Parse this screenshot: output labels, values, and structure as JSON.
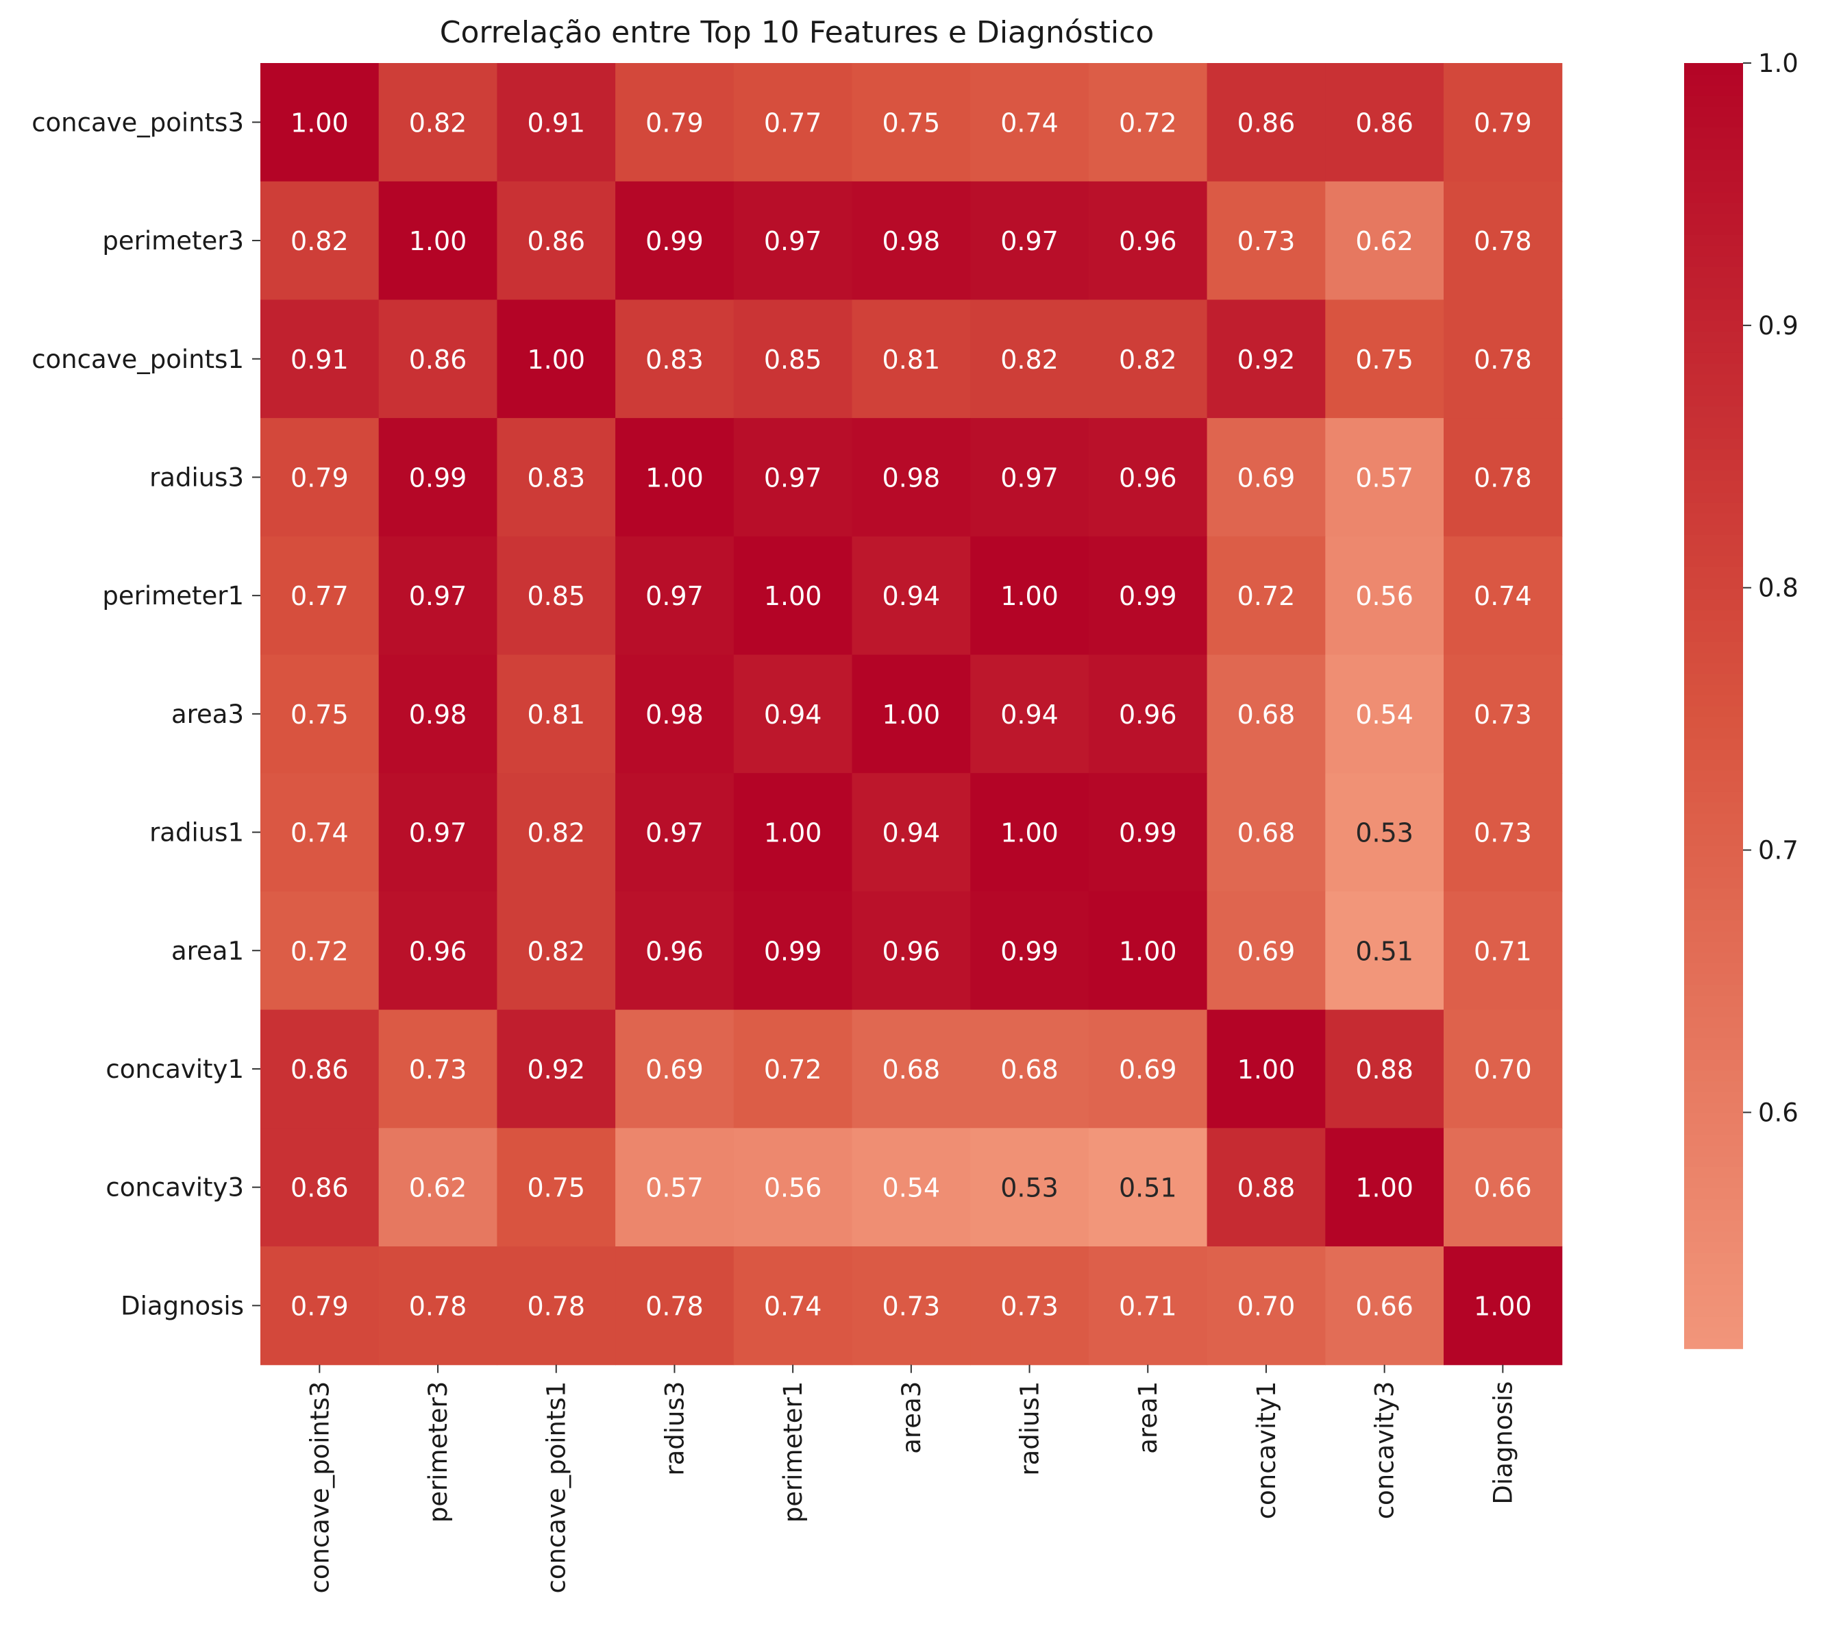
{
  "chart_data": {
    "type": "heatmap",
    "title": "Correlação entre Top 10 Features e Diagnóstico",
    "xlabel": "",
    "ylabel": "",
    "labels": [
      "concave_points3",
      "perimeter3",
      "concave_points1",
      "radius3",
      "perimeter1",
      "area3",
      "radius1",
      "area1",
      "concavity1",
      "concavity3",
      "Diagnosis"
    ],
    "values": [
      [
        1.0,
        0.82,
        0.91,
        0.79,
        0.77,
        0.75,
        0.74,
        0.72,
        0.86,
        0.86,
        0.79
      ],
      [
        0.82,
        1.0,
        0.86,
        0.99,
        0.97,
        0.98,
        0.97,
        0.96,
        0.73,
        0.62,
        0.78
      ],
      [
        0.91,
        0.86,
        1.0,
        0.83,
        0.85,
        0.81,
        0.82,
        0.82,
        0.92,
        0.75,
        0.78
      ],
      [
        0.79,
        0.99,
        0.83,
        1.0,
        0.97,
        0.98,
        0.97,
        0.96,
        0.69,
        0.57,
        0.78
      ],
      [
        0.77,
        0.97,
        0.85,
        0.97,
        1.0,
        0.94,
        1.0,
        0.99,
        0.72,
        0.56,
        0.74
      ],
      [
        0.75,
        0.98,
        0.81,
        0.98,
        0.94,
        1.0,
        0.94,
        0.96,
        0.68,
        0.54,
        0.73
      ],
      [
        0.74,
        0.97,
        0.82,
        0.97,
        1.0,
        0.94,
        1.0,
        0.99,
        0.68,
        0.53,
        0.73
      ],
      [
        0.72,
        0.96,
        0.82,
        0.96,
        0.99,
        0.96,
        0.99,
        1.0,
        0.69,
        0.51,
        0.71
      ],
      [
        0.86,
        0.73,
        0.92,
        0.69,
        0.72,
        0.68,
        0.68,
        0.69,
        1.0,
        0.88,
        0.7
      ],
      [
        0.86,
        0.62,
        0.75,
        0.57,
        0.56,
        0.54,
        0.53,
        0.51,
        0.88,
        1.0,
        0.66
      ],
      [
        0.79,
        0.78,
        0.78,
        0.78,
        0.74,
        0.73,
        0.73,
        0.71,
        0.7,
        0.66,
        1.0
      ]
    ],
    "value_format": "0.00",
    "colormap": "coolwarm (warm half)",
    "color_range": [
      0.51,
      1.0
    ],
    "colors": {
      "low": "#f2967a",
      "mid": "#d8533f",
      "high": "#b40426"
    },
    "colorbar": {
      "ticks": [
        0.6,
        0.7,
        0.8,
        0.9,
        1.0
      ],
      "tick_labels": [
        "0.6",
        "0.7",
        "0.8",
        "0.9",
        "1.0"
      ]
    },
    "annotation_text_colors": {
      "light": "#ffffff",
      "dark": "#262626"
    },
    "grid": false,
    "legend": "colorbar-right"
  }
}
